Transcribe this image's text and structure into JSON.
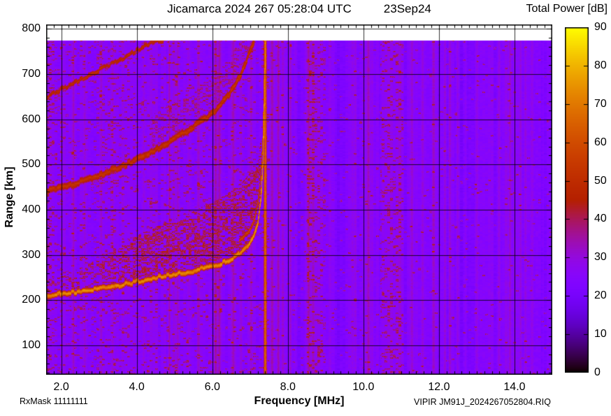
{
  "title": {
    "station_line": "Jicamarca 2024 267 05:28:04 UTC",
    "date_label": "23Sep24"
  },
  "colorbar": {
    "title": "Total Power [dB]",
    "min": 0,
    "max": 90,
    "ticks": [
      0,
      10,
      20,
      30,
      40,
      50,
      60,
      70,
      80,
      90
    ]
  },
  "x_axis": {
    "label": "Frequency [MHz]",
    "min": 1.6,
    "max": 15.0,
    "major_ticks": [
      2,
      4,
      6,
      8,
      10,
      12,
      14
    ],
    "tick_labels": [
      "2.0",
      "4.0",
      "6.0",
      "8.0",
      "10.0",
      "12.0",
      "14.0"
    ],
    "minor_step": 0.2
  },
  "y_axis": {
    "label": "Range [km]",
    "min": 35,
    "max": 810,
    "major_ticks": [
      100,
      200,
      300,
      400,
      500,
      600,
      700,
      800
    ],
    "minor_step": 20
  },
  "footer": {
    "rx_mask": "RxMask 11111111",
    "file_label": "VIPIR  JM91J_2024267052804.RIQ"
  },
  "chart_data": {
    "type": "heatmap",
    "title": "Jicamarca 2024 267 05:28:04 UTC 23Sep24",
    "xlabel": "Frequency [MHz]",
    "ylabel": "Range [km]",
    "value_label": "Total Power [dB]",
    "value_range": [
      0,
      90
    ],
    "xlim": [
      1.6,
      15.0
    ],
    "ylim": [
      35,
      810
    ],
    "palette": "gnuplot-black-violet-red-orange-yellow",
    "background_db": 24.3,
    "data_max_range_km": 775,
    "traces": [
      {
        "name": "F-layer first hop",
        "peak_db": 73,
        "halfwidth_km": 7,
        "points": [
          [
            1.6,
            211
          ],
          [
            2,
            215
          ],
          [
            2.5,
            220
          ],
          [
            3,
            226
          ],
          [
            3.5,
            233
          ],
          [
            4,
            242
          ],
          [
            4.5,
            251
          ],
          [
            5,
            258
          ],
          [
            5.5,
            266
          ],
          [
            6,
            276
          ],
          [
            6.3,
            284
          ],
          [
            6.6,
            297
          ],
          [
            6.9,
            316
          ],
          [
            7.1,
            342
          ],
          [
            7.2,
            372
          ],
          [
            7.28,
            425
          ],
          [
            7.33,
            505
          ],
          [
            7.36,
            610
          ],
          [
            7.38,
            700
          ],
          [
            7.4,
            775
          ]
        ]
      },
      {
        "name": "cusp inner arc",
        "peak_db": 56,
        "halfwidth_km": 5,
        "points": [
          [
            6.7,
            332
          ],
          [
            6.95,
            352
          ],
          [
            7.1,
            378
          ],
          [
            7.2,
            415
          ],
          [
            7.28,
            480
          ],
          [
            7.33,
            560
          ],
          [
            7.36,
            660
          ],
          [
            7.38,
            775
          ]
        ]
      },
      {
        "name": "second hop",
        "peak_db": 52,
        "halfwidth_km": 9,
        "points": [
          [
            1.6,
            442
          ],
          [
            2,
            450
          ],
          [
            2.5,
            463
          ],
          [
            3,
            477
          ],
          [
            3.5,
            494
          ],
          [
            4,
            513
          ],
          [
            4.5,
            534
          ],
          [
            5,
            558
          ],
          [
            5.5,
            585
          ],
          [
            6,
            615
          ],
          [
            6.3,
            641
          ],
          [
            6.6,
            676
          ],
          [
            6.8,
            710
          ],
          [
            6.95,
            745
          ],
          [
            7.1,
            775
          ]
        ]
      },
      {
        "name": "third hop fragment",
        "peak_db": 49,
        "halfwidth_km": 6,
        "points": [
          [
            1.6,
            650
          ],
          [
            2.2,
            676
          ],
          [
            3,
            710
          ],
          [
            3.6,
            735
          ],
          [
            4.2,
            763
          ],
          [
            4.5,
            773
          ],
          [
            4.7,
            775
          ]
        ]
      }
    ],
    "spread_f": {
      "above_trace_km": [
        [
          2,
          30
        ],
        [
          3,
          60
        ],
        [
          4,
          95
        ],
        [
          5,
          115
        ],
        [
          6,
          135
        ],
        [
          6.6,
          145
        ],
        [
          7,
          150
        ],
        [
          7.3,
          120
        ]
      ],
      "density": 0.5,
      "db_range": [
        32,
        48
      ]
    },
    "tx_line": {
      "freq": 7.39,
      "core_db": 63,
      "edge_db": 50,
      "halfwidth_mhz": 0.045
    },
    "rfi_stripes": [
      [
        2.32,
        7
      ],
      [
        2.62,
        5
      ],
      [
        3.05,
        7
      ],
      [
        3.35,
        6
      ],
      [
        3.62,
        6
      ],
      [
        4.18,
        5
      ],
      [
        4.85,
        11
      ],
      [
        4.97,
        7
      ],
      [
        5.08,
        7
      ],
      [
        5.35,
        5
      ],
      [
        5.62,
        5
      ],
      [
        6.08,
        11
      ],
      [
        6.18,
        9
      ],
      [
        6.55,
        7
      ],
      [
        6.75,
        7
      ],
      [
        7.02,
        8
      ],
      [
        7.57,
        11
      ],
      [
        7.74,
        11
      ],
      [
        7.86,
        7
      ],
      [
        8.06,
        7
      ],
      [
        8.2,
        6
      ],
      [
        8.55,
        7
      ],
      [
        8.66,
        6
      ],
      [
        9.7,
        6
      ],
      [
        9.78,
        5
      ],
      [
        10.12,
        8
      ],
      [
        10.22,
        6
      ],
      [
        11.28,
        6
      ],
      [
        11.56,
        6
      ],
      [
        11.85,
        6
      ],
      [
        12.15,
        8
      ],
      [
        12.28,
        7
      ],
      [
        12.48,
        6
      ],
      [
        12.7,
        5
      ],
      [
        13.0,
        5
      ],
      [
        13.58,
        7
      ],
      [
        13.88,
        8
      ],
      [
        14.15,
        7
      ],
      [
        14.28,
        6
      ],
      [
        14.45,
        6
      ]
    ],
    "noisy_bands": [
      [
        8.5,
        9.0,
        3
      ],
      [
        10.45,
        11.05,
        4
      ]
    ],
    "dark_bands": [
      [
        8.1,
        8.45,
        -3
      ],
      [
        9.25,
        9.6,
        -3
      ],
      [
        11.0,
        11.2,
        -2
      ],
      [
        12.55,
        12.95,
        -3
      ],
      [
        14.5,
        14.75,
        -2
      ],
      [
        14.78,
        15.0,
        -2
      ]
    ]
  },
  "colors": {
    "frame": "#000000",
    "text": "#000000",
    "background": "#ffffff"
  }
}
